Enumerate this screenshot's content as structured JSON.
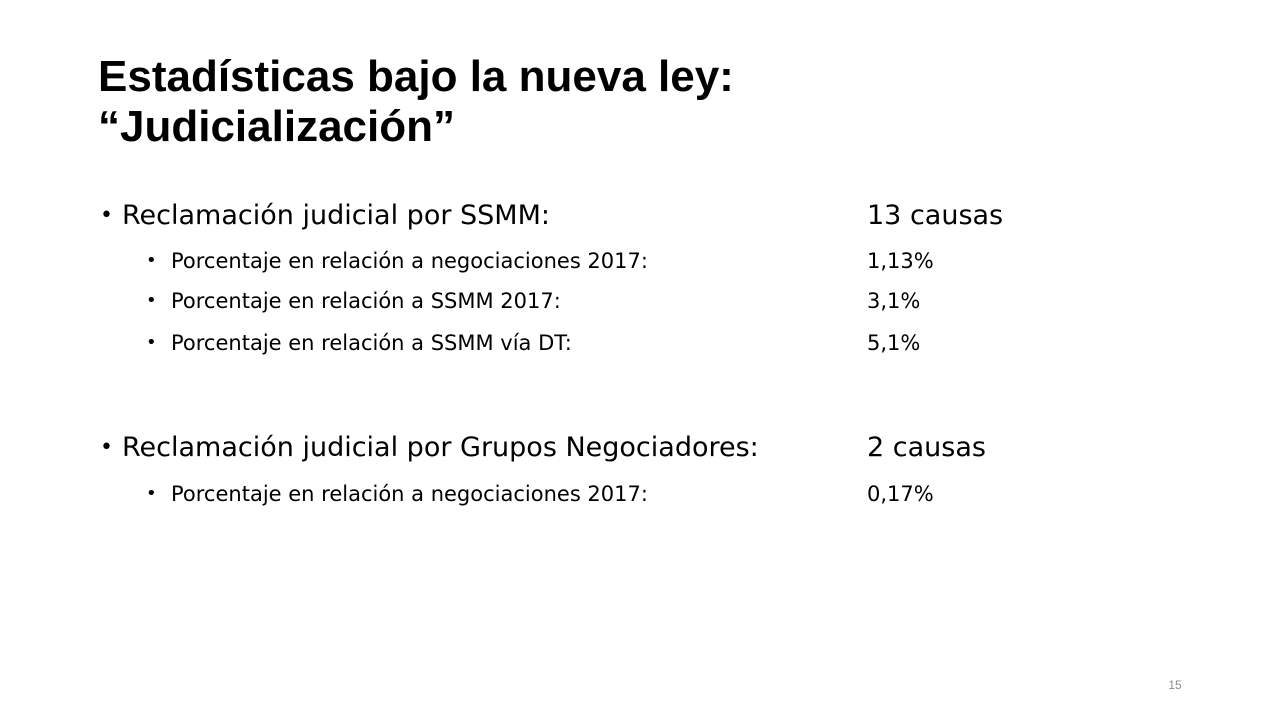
{
  "slide": {
    "title_line1": "Estadísticas bajo la nueva ley:",
    "title_line2": "“Judicialización”",
    "bullet_char": "•",
    "sections": [
      {
        "label": "Reclamación judicial por SSMM:",
        "value": "13 causas",
        "subitems": [
          {
            "label": "Porcentaje en relación a negociaciones 2017:",
            "value": "1,13%"
          },
          {
            "label": "Porcentaje en relación a SSMM 2017:",
            "value": "3,1%"
          },
          {
            "label": "Porcentaje en relación a SSMM vía DT:",
            "value": "5,1%"
          }
        ]
      },
      {
        "label": "Reclamación judicial por Grupos Negociadores:",
        "value": "2 causas",
        "subitems": [
          {
            "label": "Porcentaje en relación a negociaciones 2017:",
            "value": "0,17%"
          }
        ]
      }
    ],
    "page_number": "15"
  }
}
